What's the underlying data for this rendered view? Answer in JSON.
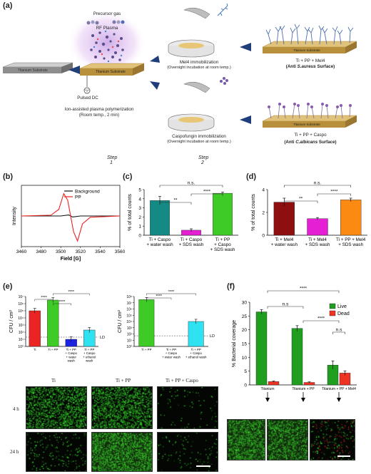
{
  "panel_labels": {
    "a": "(a)",
    "b": "(b)",
    "c": "(c)",
    "d": "(d)",
    "e": "(e)",
    "f": "(f)"
  },
  "scheme": {
    "ti_substrate": "Titanium Substrate",
    "precursor": "Precursor gas",
    "rf_plasma": "RF Plasma",
    "pulsed_dc": "Pulsed DC",
    "ion_assisted": "Ion-assisted plasma polymerization",
    "room_temp_2min": "(Room temp., 2 min)",
    "mel4_immob": "Mel4 immobilization",
    "overnight1": "(Overnight incubation at room temp.)",
    "caspo_immob": "Caspofungin immobilization",
    "overnight2": "(Overnight incubation at room temp.)",
    "result1_title": "Ti + PP + Mel4",
    "result1_sub_prefix": "(Anti ",
    "result1_sub_org": "S.aureus",
    "result1_sub_suffix": " Surface)",
    "result2_title": "Ti + PP + Caspo",
    "result2_sub_prefix": "(Anti ",
    "result2_sub_org": "C.albicans",
    "result2_sub_suffix": " Surface)",
    "step1_word": "Step",
    "step1_num": "1",
    "step2_word": "Step",
    "step2_num": "2"
  },
  "colors": {
    "gold": "#d9b45a",
    "teal": "#138a84",
    "magenta": "#e41fd4",
    "green": "#3ecb26",
    "darkred": "#8d0f0f",
    "orange": "#fb8a12",
    "red": "#ec2323",
    "blue": "#1b22e0",
    "cyan": "#2fe2f2",
    "live": "#1f9e1f",
    "dead": "#ee3322"
  },
  "chart_data": [
    {
      "id": "b",
      "type": "line",
      "xlabel": "Field  [G]",
      "ylabel": "Intensity",
      "xlim": [
        3460,
        3560
      ],
      "xticks": [
        "3460",
        "3480",
        "3500",
        "3520",
        "3540",
        "3560"
      ],
      "legend": [
        "Background",
        "PP"
      ],
      "series": [
        {
          "name": "Background",
          "x": [
            3460,
            3500,
            3508,
            3512,
            3520,
            3560
          ],
          "y": [
            0,
            0,
            0.04,
            -0.04,
            0,
            0
          ]
        },
        {
          "name": "PP",
          "x": [
            3460,
            3490,
            3498,
            3503,
            3507,
            3510,
            3513,
            3517,
            3522,
            3530,
            3560
          ],
          "y": [
            0,
            0.03,
            0.25,
            0.85,
            0.6,
            0,
            -0.6,
            -0.95,
            -0.3,
            -0.05,
            0
          ]
        }
      ]
    },
    {
      "id": "c",
      "type": "bar",
      "ylabel": "% of total counts",
      "ylim": [
        0,
        5
      ],
      "yticks": [
        "0",
        "1",
        "2",
        "3",
        "4",
        "5"
      ],
      "categories": [
        "Ti + Caspo\n+ water wash",
        "Ti + Caspo\n+ SDS wash",
        "Ti + PP\n+ Caspo\n+ SDS wash"
      ],
      "values": [
        3.8,
        0.55,
        4.6
      ],
      "errors": [
        0.45,
        0.15,
        0.12
      ],
      "significance": [
        {
          "label": "n.s.",
          "from": 0,
          "to": 2
        },
        {
          "label": "**",
          "from": 0,
          "to": 1
        },
        {
          "label": "****",
          "from": 1,
          "to": 2
        }
      ]
    },
    {
      "id": "d",
      "type": "bar",
      "ylabel": "% of total counts",
      "ylim": [
        0,
        4
      ],
      "yticks": [
        "0",
        "2",
        "4"
      ],
      "categories": [
        "Ti + Mel4\n+ water wash",
        "Ti + Mel4\n+ SDS wash",
        "Ti + PP + Mel4\n+ SDS wash"
      ],
      "values": [
        2.9,
        1.45,
        3.1
      ],
      "errors": [
        0.35,
        0.1,
        0.15
      ],
      "significance": [
        {
          "label": "n.s.",
          "from": 0,
          "to": 2
        },
        {
          "label": "**",
          "from": 0,
          "to": 1
        },
        {
          "label": "****",
          "from": 1,
          "to": 2
        }
      ]
    },
    {
      "id": "e1",
      "type": "bar",
      "ylabel": "CFU / cm²",
      "log_scale": true,
      "yticks": [
        "10⁷",
        "10⁶",
        "10⁵",
        "10⁴",
        "10³",
        "10²",
        "10¹",
        "10⁰"
      ],
      "categories": [
        "Ti",
        "Ti + PP",
        "Ti + PP\n+ Caspo\n+ water\nwash",
        "Ti + PP\n+ Caspo\n+ ethanol\nwash"
      ],
      "values": [
        5.0,
        6.5,
        1.0,
        2.3
      ],
      "lod_label": "LD",
      "lod": 1.3,
      "significance": [
        {
          "label": "****",
          "from": 0,
          "to": 1
        },
        {
          "label": "****",
          "from": 1,
          "to": 2
        },
        {
          "label": "****",
          "from": 1,
          "to": 3
        }
      ]
    },
    {
      "id": "e2",
      "type": "bar",
      "ylabel": "CFU / cm²",
      "log_scale": true,
      "yticks": [
        "10⁸",
        "10⁷",
        "10⁶",
        "10⁵",
        "10⁴",
        "10³",
        "10²",
        "10¹",
        "10⁰"
      ],
      "categories": [
        "Ti + PP",
        "Ti + PP\n+ Caspo\n+ water wash",
        "Ti + PP\n+ Caspo\n+ ethanol wash"
      ],
      "values": [
        7.5,
        0,
        4.0
      ],
      "lod_label": "LD",
      "lod": 1.7,
      "significance": [
        {
          "label": "****",
          "from": 0,
          "to": 1
        },
        {
          "label": "****",
          "from": 0,
          "to": 2
        }
      ]
    },
    {
      "id": "f",
      "type": "bar",
      "ylabel": "% Bacterial coverage",
      "ylim": [
        0,
        30
      ],
      "yticks": [
        "0",
        "5",
        "10",
        "15",
        "20",
        "25",
        "30"
      ],
      "categories": [
        "Titanium",
        "Titanium + PP",
        "Titanium + PP + Mel4"
      ],
      "series": [
        {
          "name": "Live",
          "values": [
            26.5,
            20.5,
            7.2
          ],
          "errors": [
            0.8,
            1.0,
            1.5
          ]
        },
        {
          "name": "Dead",
          "values": [
            1.2,
            0.9,
            4.3
          ],
          "errors": [
            0.2,
            0.2,
            0.8
          ]
        }
      ],
      "legend": [
        "Live",
        "Dead"
      ],
      "significance": [
        {
          "label": "****",
          "from": 0,
          "to": 2
        },
        {
          "label": "n.s",
          "from": 0,
          "to": 1
        },
        {
          "label": "****",
          "from": 1,
          "to": 2
        },
        {
          "label": "n.s",
          "from": 2,
          "to": 2
        }
      ]
    }
  ],
  "micro_e": {
    "cols": [
      "Ti",
      "Ti + PP",
      "Ti + PP + Caspo"
    ],
    "rows": [
      "4 h",
      "24 h"
    ]
  }
}
